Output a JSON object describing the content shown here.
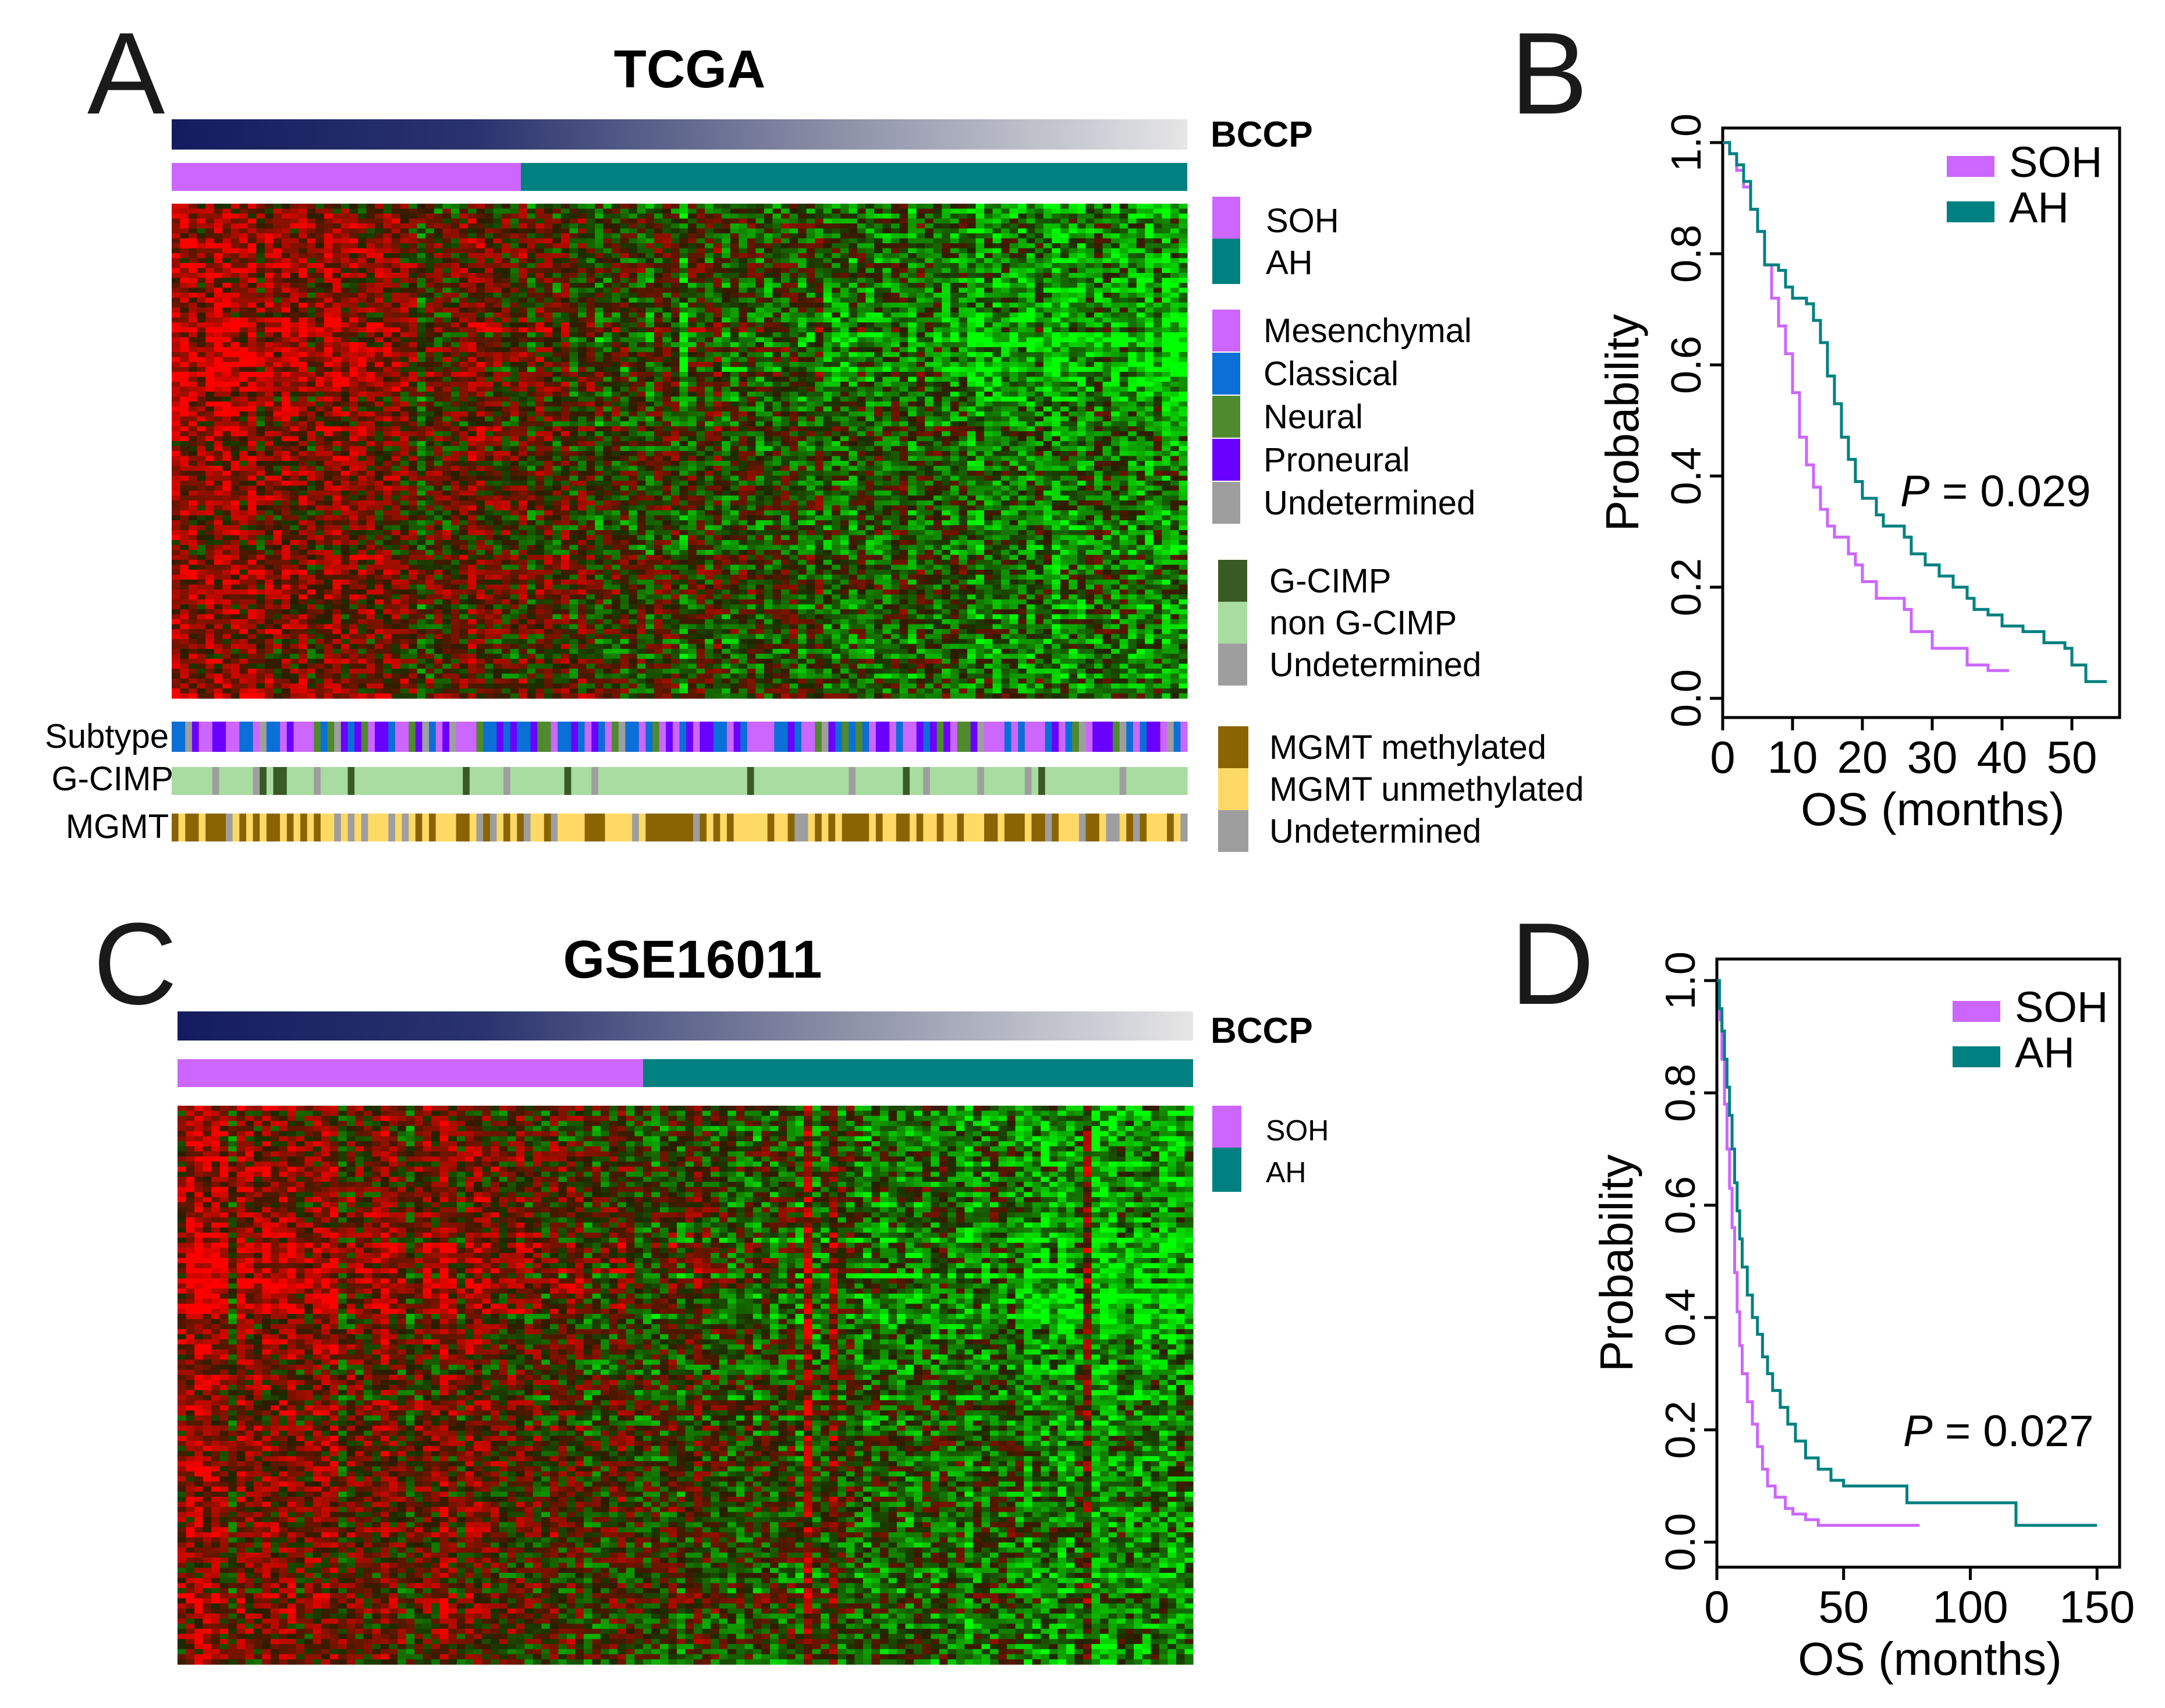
{
  "figure": {
    "panels": {
      "A": {
        "letter": "A",
        "title": "TCGA"
      },
      "B": {
        "letter": "B"
      },
      "C": {
        "letter": "C",
        "title": "GSE16011"
      },
      "D": {
        "letter": "D"
      }
    }
  },
  "labels": {
    "bccp": "BCCP",
    "row_subtype": "Subtype",
    "row_gcimp": "G-CIMP",
    "row_mgmt": "MGMT"
  },
  "legends": {
    "group": [
      {
        "label": "SOH",
        "color": "#cc66ff"
      },
      {
        "label": "AH",
        "color": "#008080"
      }
    ],
    "subtype": [
      {
        "label": "Mesenchymal",
        "color": "#cc66ff"
      },
      {
        "label": "Classical",
        "color": "#0a6fd6"
      },
      {
        "label": "Neural",
        "color": "#4f8a2e"
      },
      {
        "label": "Proneural",
        "color": "#6a00ff"
      },
      {
        "label": "Undetermined",
        "color": "#9e9e9e"
      }
    ],
    "gcimp": [
      {
        "label": "G-CIMP",
        "color": "#3a5a25"
      },
      {
        "label": "non G-CIMP",
        "color": "#a8dca0"
      },
      {
        "label": "Undetermined",
        "color": "#9e9e9e"
      }
    ],
    "mgmt": [
      {
        "label": "MGMT methylated",
        "color": "#8a6400"
      },
      {
        "label": "MGMT unmethylated",
        "color": "#ffd966"
      },
      {
        "label": "Undetermined",
        "color": "#9e9e9e"
      }
    ]
  },
  "colors": {
    "soh": "#cc66ff",
    "ah": "#008080",
    "bccp_start": "#141c60",
    "bccp_end": "#e6e6e6",
    "heat_high": "#ff0000",
    "heat_low": "#00ff00",
    "heat_mid": "#000000"
  },
  "chart_data": [
    {
      "id": "heatmap-tcga",
      "type": "heatmap",
      "title": "TCGA",
      "description_bars": [
        "BCCP",
        "SOH / AH group"
      ],
      "soh_fraction": 0.34,
      "annotation_rows": [
        "Subtype",
        "G-CIMP",
        "MGMT"
      ]
    },
    {
      "id": "km-tcga",
      "type": "line",
      "xlabel": "OS (months)",
      "ylabel": "Probability",
      "xlim": [
        0,
        55
      ],
      "ylim": [
        0,
        1
      ],
      "xticks": [
        "0",
        "10",
        "20",
        "30",
        "40",
        "50"
      ],
      "yticks": [
        "0.0",
        "0.2",
        "0.4",
        "0.6",
        "0.8",
        "1.0"
      ],
      "p_label": "P",
      "p_text": " = 0.029",
      "series": [
        {
          "name": "SOH",
          "color": "#cc66ff",
          "points": [
            [
              0,
              1.0
            ],
            [
              1,
              0.98
            ],
            [
              2,
              0.95
            ],
            [
              3,
              0.92
            ],
            [
              4,
              0.88
            ],
            [
              5,
              0.84
            ],
            [
              6,
              0.78
            ],
            [
              7,
              0.72
            ],
            [
              8,
              0.67
            ],
            [
              9,
              0.62
            ],
            [
              10,
              0.55
            ],
            [
              11,
              0.47
            ],
            [
              12,
              0.42
            ],
            [
              13,
              0.38
            ],
            [
              14,
              0.34
            ],
            [
              15,
              0.31
            ],
            [
              16,
              0.29
            ],
            [
              18,
              0.26
            ],
            [
              19,
              0.24
            ],
            [
              20,
              0.21
            ],
            [
              22,
              0.18
            ],
            [
              26,
              0.16
            ],
            [
              27,
              0.12
            ],
            [
              30,
              0.09
            ],
            [
              35,
              0.06
            ],
            [
              38,
              0.05
            ],
            [
              41,
              0.05
            ]
          ]
        },
        {
          "name": "AH",
          "color": "#008080",
          "points": [
            [
              0,
              1.0
            ],
            [
              1,
              0.98
            ],
            [
              2,
              0.96
            ],
            [
              3,
              0.93
            ],
            [
              4,
              0.88
            ],
            [
              5,
              0.84
            ],
            [
              6,
              0.78
            ],
            [
              8,
              0.77
            ],
            [
              9,
              0.74
            ],
            [
              10,
              0.72
            ],
            [
              12,
              0.71
            ],
            [
              13,
              0.68
            ],
            [
              14,
              0.64
            ],
            [
              15,
              0.58
            ],
            [
              16,
              0.53
            ],
            [
              17,
              0.47
            ],
            [
              18,
              0.43
            ],
            [
              19,
              0.39
            ],
            [
              20,
              0.36
            ],
            [
              22,
              0.33
            ],
            [
              23,
              0.31
            ],
            [
              26,
              0.29
            ],
            [
              27,
              0.26
            ],
            [
              29,
              0.24
            ],
            [
              31,
              0.22
            ],
            [
              33,
              0.2
            ],
            [
              35,
              0.18
            ],
            [
              36,
              0.16
            ],
            [
              38,
              0.15
            ],
            [
              40,
              0.13
            ],
            [
              43,
              0.12
            ],
            [
              46,
              0.1
            ],
            [
              49,
              0.09
            ],
            [
              50,
              0.06
            ],
            [
              52,
              0.03
            ],
            [
              55,
              0.03
            ]
          ]
        }
      ]
    },
    {
      "id": "heatmap-gse",
      "type": "heatmap",
      "title": "GSE16011",
      "description_bars": [
        "BCCP",
        "SOH / AH group"
      ],
      "soh_fraction": 0.46
    },
    {
      "id": "km-gse",
      "type": "line",
      "xlabel": "OS (months)",
      "ylabel": "Probability",
      "xlim": [
        0,
        155
      ],
      "ylim": [
        0,
        1
      ],
      "xticks": [
        "0",
        "50",
        "100",
        "150"
      ],
      "yticks": [
        "0.0",
        "0.2",
        "0.4",
        "0.6",
        "0.8",
        "1.0"
      ],
      "p_label": "P",
      "p_text": " = 0.027",
      "series": [
        {
          "name": "SOH",
          "color": "#cc66ff",
          "points": [
            [
              0,
              1.0
            ],
            [
              1,
              0.93
            ],
            [
              2,
              0.86
            ],
            [
              3,
              0.78
            ],
            [
              4,
              0.7
            ],
            [
              5,
              0.63
            ],
            [
              6,
              0.56
            ],
            [
              7,
              0.48
            ],
            [
              8,
              0.41
            ],
            [
              9,
              0.35
            ],
            [
              10,
              0.3
            ],
            [
              12,
              0.25
            ],
            [
              14,
              0.21
            ],
            [
              16,
              0.17
            ],
            [
              18,
              0.13
            ],
            [
              20,
              0.1
            ],
            [
              23,
              0.08
            ],
            [
              27,
              0.06
            ],
            [
              30,
              0.05
            ],
            [
              35,
              0.04
            ],
            [
              40,
              0.03
            ],
            [
              50,
              0.03
            ],
            [
              65,
              0.03
            ],
            [
              80,
              0.03
            ]
          ]
        },
        {
          "name": "AH",
          "color": "#008080",
          "points": [
            [
              0,
              1.0
            ],
            [
              1,
              0.95
            ],
            [
              2,
              0.91
            ],
            [
              3,
              0.86
            ],
            [
              4,
              0.81
            ],
            [
              5,
              0.76
            ],
            [
              6,
              0.7
            ],
            [
              7,
              0.64
            ],
            [
              8,
              0.59
            ],
            [
              9,
              0.54
            ],
            [
              10,
              0.49
            ],
            [
              12,
              0.44
            ],
            [
              14,
              0.4
            ],
            [
              16,
              0.37
            ],
            [
              18,
              0.33
            ],
            [
              20,
              0.3
            ],
            [
              22,
              0.27
            ],
            [
              25,
              0.24
            ],
            [
              28,
              0.21
            ],
            [
              31,
              0.18
            ],
            [
              35,
              0.15
            ],
            [
              40,
              0.13
            ],
            [
              45,
              0.11
            ],
            [
              50,
              0.1
            ],
            [
              60,
              0.1
            ],
            [
              75,
              0.07
            ],
            [
              100,
              0.07
            ],
            [
              118,
              0.03
            ],
            [
              150,
              0.03
            ]
          ]
        }
      ]
    }
  ]
}
